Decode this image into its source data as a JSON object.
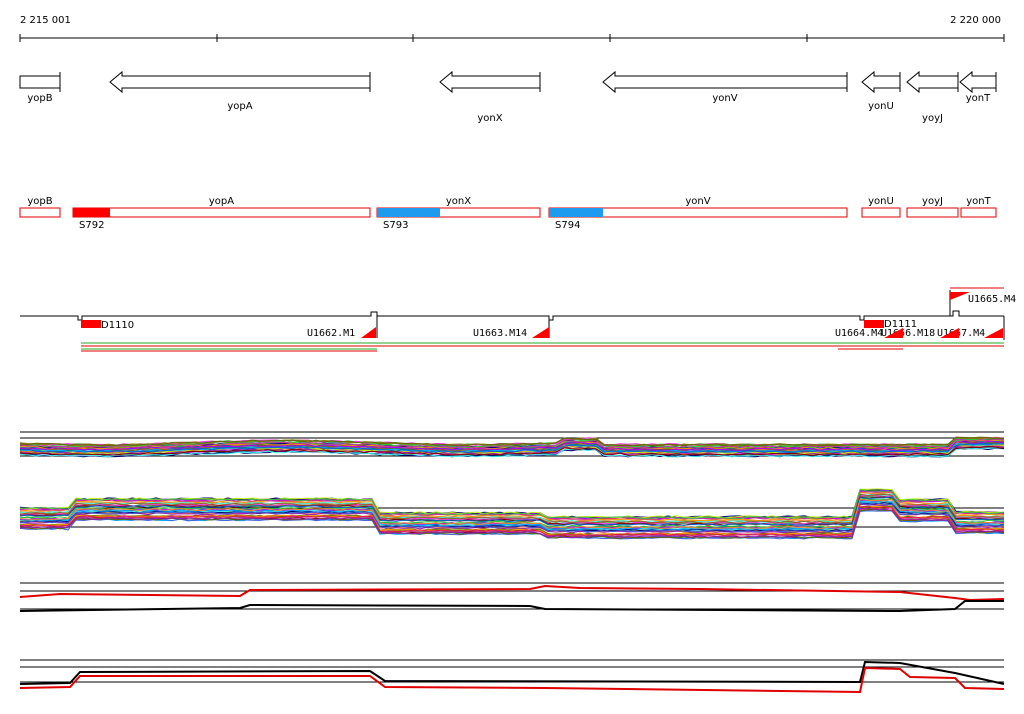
{
  "ruler": {
    "left_label": "2 215 001",
    "right_label": "2 220 000"
  },
  "gene_track": {
    "genes": [
      {
        "name": "yopB",
        "x0": 20,
        "x1": 60,
        "dir": "right"
      },
      {
        "name": "yopA",
        "x0": 110,
        "x1": 370,
        "dir": "left"
      },
      {
        "name": "yonX",
        "x0": 440,
        "x1": 540,
        "dir": "left"
      },
      {
        "name": "yonV",
        "x0": 603,
        "x1": 847,
        "dir": "left"
      },
      {
        "name": "yonU",
        "x0": 862,
        "x1": 900,
        "dir": "left"
      },
      {
        "name": "yoyJ",
        "x0": 907,
        "x1": 958,
        "dir": "left"
      },
      {
        "name": "yonT",
        "x0": 960,
        "x1": 996,
        "dir": "left"
      }
    ]
  },
  "feature_track": {
    "boxes": [
      {
        "name": "yopB",
        "x0": 20,
        "x1": 60
      },
      {
        "name": "yopA",
        "x0": 73,
        "x1": 370
      },
      {
        "name": "yonX",
        "x0": 377,
        "x1": 540
      },
      {
        "name": "yonV",
        "x0": 549,
        "x1": 847
      },
      {
        "name": "yonU",
        "x0": 862,
        "x1": 900
      },
      {
        "name": "yoyJ",
        "x0": 907,
        "x1": 958
      },
      {
        "name": "yonT",
        "x0": 961,
        "x1": 996
      }
    ],
    "markers": [
      {
        "label": "S792",
        "x0": 73,
        "x1": 110,
        "color": "#ff0000"
      },
      {
        "label": "S793",
        "x0": 377,
        "x1": 440,
        "color": "#1e9bef"
      },
      {
        "label": "S794",
        "x0": 549,
        "x1": 603,
        "color": "#1e9bef"
      }
    ]
  },
  "transcript_track": {
    "labels": {
      "d1110": "D1110",
      "d1111": "D1111",
      "u1662": "U1662.M1",
      "u1663": "U1663.M14",
      "u1664": "U1664.M4",
      "u1665": "U1665.M4",
      "u1666": "U1666.M18",
      "u1667": "U1667.M4"
    }
  },
  "colors": {
    "gene_outline": "#000000",
    "feature_outline": "#e00000",
    "marker_red": "#ff0000",
    "marker_blue": "#1e9bef",
    "green_line": "#22aa22"
  }
}
